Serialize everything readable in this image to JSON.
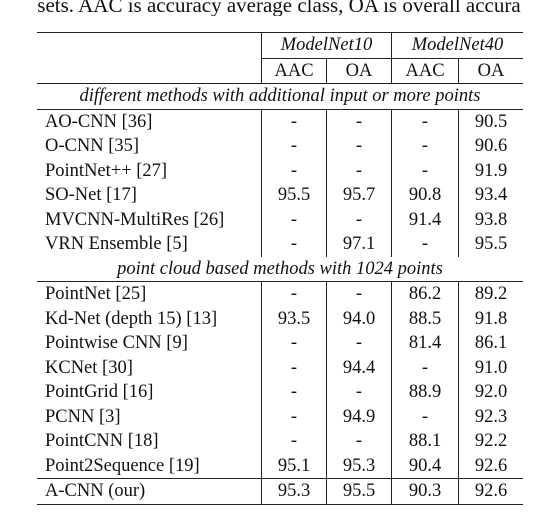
{
  "caption_tail": "sets. AAC is accuracy average class, OA is overall accura",
  "datasets": [
    "ModelNet10",
    "ModelNet40"
  ],
  "metrics": [
    "AAC",
    "OA",
    "AAC",
    "OA"
  ],
  "sections": [
    {
      "title": "different methods with additional input or more points",
      "rows": [
        {
          "method": "AO-CNN [36]",
          "values": [
            "-",
            "-",
            "-",
            "90.5"
          ],
          "bold": [
            false,
            false,
            false,
            false
          ]
        },
        {
          "method": "O-CNN [35]",
          "values": [
            "-",
            "-",
            "-",
            "90.6"
          ],
          "bold": [
            false,
            false,
            false,
            false
          ]
        },
        {
          "method": "PointNet++ [27]",
          "values": [
            "-",
            "-",
            "-",
            "91.9"
          ],
          "bold": [
            false,
            false,
            false,
            false
          ]
        },
        {
          "method": "SO-Net [17]",
          "values": [
            "95.5",
            "95.7",
            "90.8",
            "93.4"
          ],
          "bold": [
            false,
            false,
            false,
            false
          ]
        },
        {
          "method": "MVCNN-MultiRes [26]",
          "values": [
            "-",
            "-",
            "91.4",
            "93.8"
          ],
          "bold": [
            false,
            false,
            false,
            false
          ]
        },
        {
          "method": "VRN Ensemble [5]",
          "values": [
            "-",
            "97.1",
            "-",
            "95.5"
          ],
          "bold": [
            false,
            false,
            false,
            false
          ]
        }
      ]
    },
    {
      "title": "point cloud based methods with 1024 points",
      "rows": [
        {
          "method": "PointNet [25]",
          "values": [
            "-",
            "-",
            "86.2",
            "89.2"
          ],
          "bold": [
            false,
            false,
            false,
            false
          ]
        },
        {
          "method": "Kd-Net (depth 15) [13]",
          "values": [
            "93.5",
            "94.0",
            "88.5",
            "91.8"
          ],
          "bold": [
            false,
            false,
            false,
            false
          ]
        },
        {
          "method": "Pointwise CNN [9]",
          "values": [
            "-",
            "-",
            "81.4",
            "86.1"
          ],
          "bold": [
            false,
            false,
            false,
            false
          ]
        },
        {
          "method": "KCNet [30]",
          "values": [
            "-",
            "94.4",
            "-",
            "91.0"
          ],
          "bold": [
            false,
            false,
            false,
            false
          ]
        },
        {
          "method": "PointGrid [16]",
          "values": [
            "-",
            "-",
            "88.9",
            "92.0"
          ],
          "bold": [
            false,
            false,
            false,
            false
          ]
        },
        {
          "method": "PCNN [3]",
          "values": [
            "-",
            "94.9",
            "-",
            "92.3"
          ],
          "bold": [
            false,
            false,
            false,
            false
          ]
        },
        {
          "method": "PointCNN [18]",
          "values": [
            "-",
            "-",
            "88.1",
            "92.2"
          ],
          "bold": [
            false,
            false,
            false,
            false
          ]
        },
        {
          "method": "Point2Sequence [19]",
          "values": [
            "95.1",
            "95.3",
            "90.4",
            "92.6"
          ],
          "bold": [
            false,
            false,
            true,
            true
          ]
        }
      ]
    }
  ],
  "final_row": {
    "method": "A-CNN (our)",
    "values": [
      "95.3",
      "95.5",
      "90.3",
      "92.6"
    ],
    "bold": [
      true,
      true,
      false,
      true
    ]
  }
}
